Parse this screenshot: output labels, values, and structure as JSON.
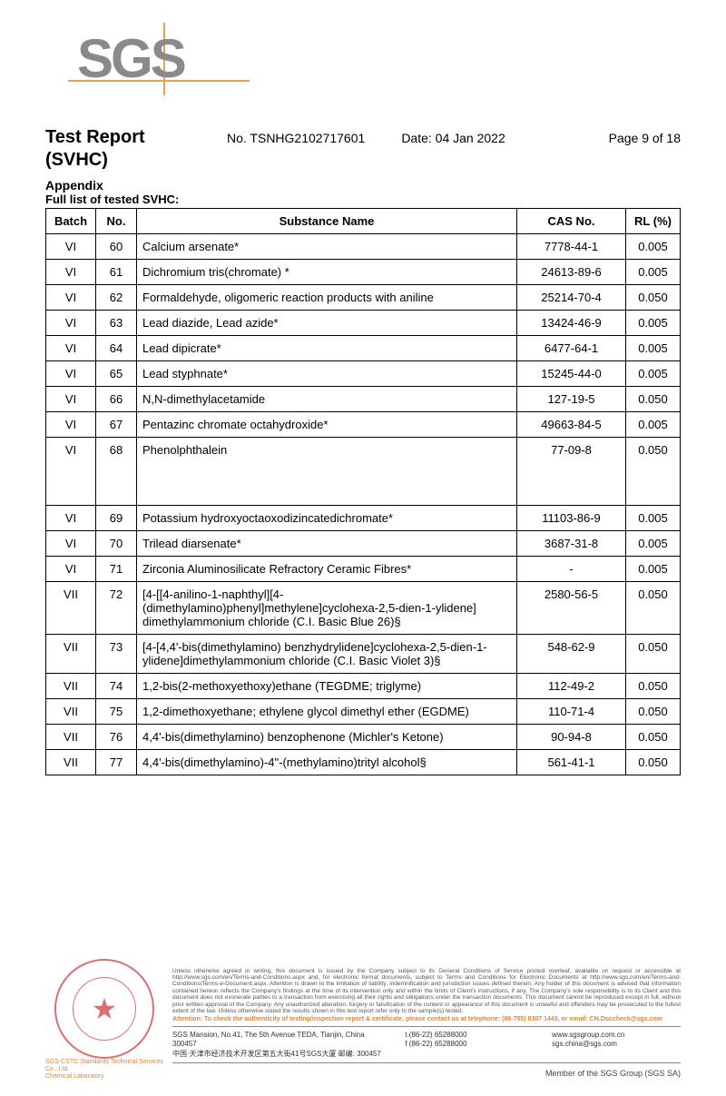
{
  "logo_text": "SGS",
  "header": {
    "title": "Test Report",
    "subtitle": "(SVHC)",
    "report_no": "No. TSNHG2102717601",
    "date": "Date: 04 Jan 2022",
    "page": "Page 9 of 18",
    "appendix": "Appendix",
    "list_title": "Full list of tested SVHC:"
  },
  "table": {
    "columns": [
      "Batch",
      "No.",
      "Substance Name",
      "CAS No.",
      "RL (%)"
    ],
    "rows": [
      {
        "batch": "VI",
        "no": "60",
        "sub": "Calcium arsenate*",
        "cas": "7778-44-1",
        "rl": "0.005",
        "tall": false
      },
      {
        "batch": "VI",
        "no": "61",
        "sub": "Dichromium tris(chromate) *",
        "cas": "24613-89-6",
        "rl": "0.005",
        "tall": false
      },
      {
        "batch": "VI",
        "no": "62",
        "sub": "Formaldehyde, oligomeric reaction products with aniline",
        "cas": "25214-70-4",
        "rl": "0.050",
        "tall": false
      },
      {
        "batch": "VI",
        "no": "63",
        "sub": "Lead diazide, Lead azide*",
        "cas": "13424-46-9",
        "rl": "0.005",
        "tall": false
      },
      {
        "batch": "VI",
        "no": "64",
        "sub": "Lead dipicrate*",
        "cas": "6477-64-1",
        "rl": "0.005",
        "tall": false
      },
      {
        "batch": "VI",
        "no": "65",
        "sub": "Lead styphnate*",
        "cas": "15245-44-0",
        "rl": "0.005",
        "tall": false
      },
      {
        "batch": "VI",
        "no": "66",
        "sub": "N,N-dimethylacetamide",
        "cas": "127-19-5",
        "rl": "0.050",
        "tall": false
      },
      {
        "batch": "VI",
        "no": "67",
        "sub": "Pentazinc chromate octahydroxide*",
        "cas": "49663-84-5",
        "rl": "0.005",
        "tall": false
      },
      {
        "batch": "VI",
        "no": "68",
        "sub": "Phenolphthalein",
        "cas": "77-09-8",
        "rl": "0.050",
        "tall": true
      },
      {
        "batch": "VI",
        "no": "69",
        "sub": "Potassium hydroxyoctaoxodizincatedichromate*",
        "cas": "11103-86-9",
        "rl": "0.005",
        "tall": false
      },
      {
        "batch": "VI",
        "no": "70",
        "sub": "Trilead diarsenate*",
        "cas": "3687-31-8",
        "rl": "0.005",
        "tall": false
      },
      {
        "batch": "VI",
        "no": "71",
        "sub": "Zirconia Aluminosilicate Refractory Ceramic Fibres*",
        "cas": "-",
        "rl": "0.005",
        "tall": false
      },
      {
        "batch": "VII",
        "no": "72",
        "sub": "[4-[[4-anilino-1-naphthyl][4-(dimethylamino)phenyl]methylene]cyclohexa-2,5-dien-1-ylidene] dimethylammonium chloride (C.I. Basic Blue 26)§",
        "cas": "2580-56-5",
        "rl": "0.050",
        "tall": false
      },
      {
        "batch": "VII",
        "no": "73",
        "sub": "[4-[4,4'-bis(dimethylamino) benzhydrylidene]cyclohexa-2,5-dien-1-ylidene]dimethylammonium chloride (C.I. Basic Violet 3)§",
        "cas": "548-62-9",
        "rl": "0.050",
        "tall": false
      },
      {
        "batch": "VII",
        "no": "74",
        "sub": "1,2-bis(2-methoxyethoxy)ethane (TEGDME; triglyme)",
        "cas": "112-49-2",
        "rl": "0.050",
        "tall": false
      },
      {
        "batch": "VII",
        "no": "75",
        "sub": "1,2-dimethoxyethane; ethylene glycol dimethyl ether (EGDME)",
        "cas": "110-71-4",
        "rl": "0.050",
        "tall": false
      },
      {
        "batch": "VII",
        "no": "76",
        "sub": "4,4'-bis(dimethylamino) benzophenone (Michler's Ketone)",
        "cas": "90-94-8",
        "rl": "0.050",
        "tall": false
      },
      {
        "batch": "VII",
        "no": "77",
        "sub": "4,4'-bis(dimethylamino)-4\"-(methylamino)trityl alcohol§",
        "cas": "561-41-1",
        "rl": "0.050",
        "tall": false
      }
    ]
  },
  "footer": {
    "disclaimer": "Unless otherwise agreed in writing, this document is issued by the Company subject to its General Conditions of Service printed overleaf, available on request or accessible at http://www.sgs.com/en/Terms-and-Conditions.aspx and, for electronic format documents, subject to Terms and Conditions for Electronic Documents at http://www.sgs.com/en/Terms-and-Conditions/Terms-e-Document.aspx. Attention is drawn to the limitation of liability, indemnification and jurisdiction issues defined therein. Any holder of this document is advised that information contained hereon reflects the Company's findings at the time of its intervention only and within the limits of Client's instructions, if any. The Company's sole responsibility is to its Client and this document does not exonerate parties to a transaction from exercising all their rights and obligations under the transaction documents. This document cannot be reproduced except in full, without prior written approval of the Company. Any unauthorized alteration, forgery or falsification of the content or appearance of this document is unlawful and offenders may be prosecuted to the fullest extent of the law. Unless otherwise stated the results shown in this test report refer only to the sample(s) tested.",
    "attention": "Attention: To check the authenticity of testing/inspection report & certificate, please contact us at telephone: (86-755) 8307 1443, or email: CN.Doccheck@sgs.com",
    "stamp_under_1": "SGS-CSTC Standards Technical Services Co., Ltd.",
    "stamp_under_2": "Chemical Laboratory",
    "address_en": "SGS Mansion, No.41, The 5th Avenue TEDA, Tianjin, China 300457",
    "address_cn": "中国·天津市经济技术开发区第五大街41号SGS大厦   邮编: 300457",
    "tel": "t (86-22) 65288000",
    "fax": "f (86-22) 65288000",
    "web1": "www.sgsgroup.com.cn",
    "web2": "sgs.china@sgs.com",
    "member": "Member of the SGS Group (SGS SA)"
  }
}
